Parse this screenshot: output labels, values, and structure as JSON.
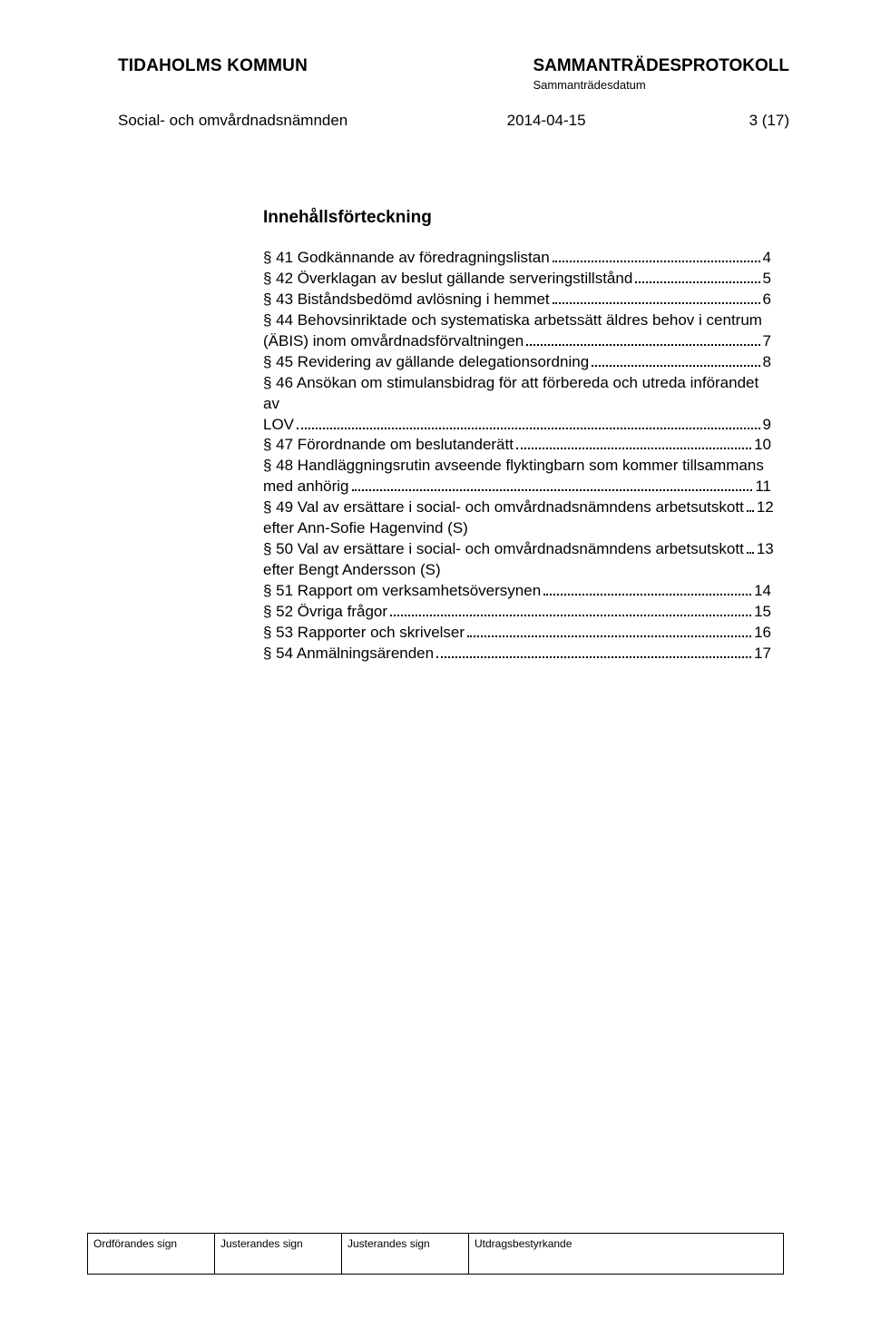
{
  "header": {
    "org": "TIDAHOLMS KOMMUN",
    "protocol": "SAMMANTRÄDESPROTOKOLL",
    "sub": "Sammanträdesdatum",
    "committee": "Social- och omvårdnadsnämnden",
    "date": "2014-04-15",
    "page": "3 (17)"
  },
  "toc": {
    "title": "Innehållsförteckning",
    "items": [
      {
        "text": "§ 41 Godkännande av föredragningslistan",
        "page": "4"
      },
      {
        "text": "§ 42 Överklagan av beslut gällande serveringstillstånd",
        "page": "5"
      },
      {
        "text": "§ 43 Biståndsbedömd avlösning i hemmet",
        "page": "6"
      },
      {
        "wrap1": "§ 44 Behovsinriktade och systematiska arbetssätt äldres behov i centrum",
        "wrap2": "(ÄBIS) inom omvårdnadsförvaltningen",
        "page": "7"
      },
      {
        "text": "§ 45 Revidering av gällande delegationsordning",
        "page": "8"
      },
      {
        "wrap1": "§ 46 Ansökan om stimulansbidrag för att förbereda och utreda införandet av",
        "wrap2": "LOV",
        "page": "9"
      },
      {
        "text": "§ 47 Förordnande om beslutanderätt",
        "page": "10"
      },
      {
        "wrap1": "§ 48 Handläggningsrutin avseende flyktingbarn som kommer tillsammans",
        "wrap2": "med anhörig",
        "page": "11"
      },
      {
        "text": "§ 49 Val av ersättare i social- och omvårdnadsnämndens arbetsutskott",
        "page": "12"
      },
      {
        "sub": "efter Ann-Sofie Hagenvind (S)"
      },
      {
        "text": "§ 50 Val av ersättare i social- och omvårdnadsnämndens arbetsutskott",
        "page": "13"
      },
      {
        "sub": "efter Bengt Andersson (S)"
      },
      {
        "text": "§ 51 Rapport om verksamhetsöversynen",
        "page": "14"
      },
      {
        "text": "§ 52 Övriga frågor",
        "page": "15"
      },
      {
        "text": "§ 53 Rapporter och skrivelser",
        "page": "16"
      },
      {
        "text": "§ 54 Anmälningsärenden",
        "page": "17"
      }
    ]
  },
  "footer": {
    "c1": "Ordförandes sign",
    "c2": "Justerandes sign",
    "c3": "Justerandes sign",
    "c4": "Utdragsbestyrkande"
  }
}
